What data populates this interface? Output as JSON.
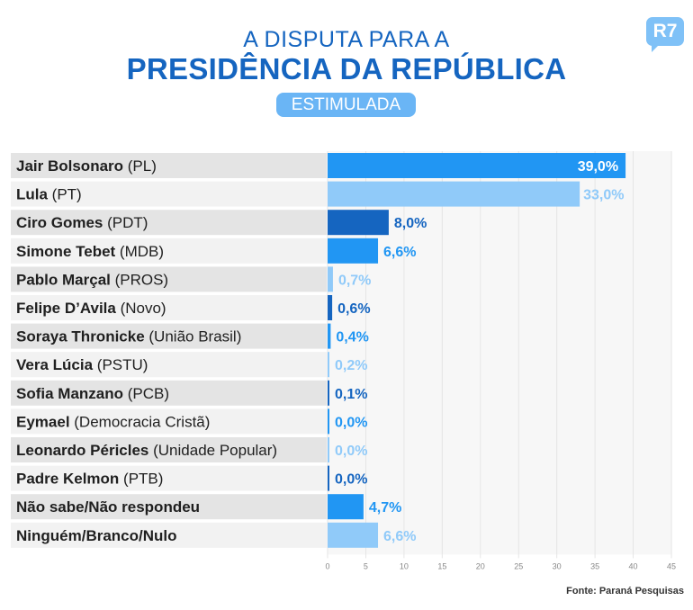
{
  "header": {
    "title_line1": "A DISPUTA PARA A",
    "title_line2": "PRESIDÊNCIA DA REPÚBLICA",
    "subtitle": "ESTIMULADA",
    "logo": "R7"
  },
  "source": "Fonte: Paraná Pesquisas",
  "chart_data": {
    "type": "bar",
    "orientation": "horizontal",
    "categories": [
      {
        "name": "Jair Bolsonaro",
        "party": "(PL)"
      },
      {
        "name": "Lula",
        "party": "(PT)"
      },
      {
        "name": "Ciro Gomes",
        "party": "(PDT)"
      },
      {
        "name": "Simone Tebet",
        "party": "(MDB)"
      },
      {
        "name": "Pablo Marçal",
        "party": "(PROS)"
      },
      {
        "name": "Felipe D’Avila",
        "party": "(Novo)"
      },
      {
        "name": "Soraya Thronicke",
        "party": "(União Brasil)"
      },
      {
        "name": "Vera Lúcia",
        "party": "(PSTU)"
      },
      {
        "name": "Sofia Manzano",
        "party": "(PCB)"
      },
      {
        "name": "Eymael",
        "party": "(Democracia Cristã)"
      },
      {
        "name": "Leonardo Péricles",
        "party": "(Unidade Popular)"
      },
      {
        "name": "Padre Kelmon",
        "party": "(PTB)"
      },
      {
        "name": "Não sabe/Não respondeu",
        "party": ""
      },
      {
        "name": "Ninguém/Branco/Nulo",
        "party": ""
      }
    ],
    "values": [
      39.0,
      33.0,
      8.0,
      6.6,
      0.7,
      0.6,
      0.4,
      0.2,
      0.1,
      0.0,
      0.0,
      0.0,
      4.7,
      6.6
    ],
    "value_labels": [
      "39,0%",
      "33,0%",
      "8,0%",
      "6,6%",
      "0,7%",
      "0,6%",
      "0,4%",
      "0,2%",
      "0,1%",
      "0,0%",
      "0,0%",
      "0,0%",
      "4,7%",
      "6,6%"
    ],
    "colors": [
      "#2196f3",
      "#90caf9",
      "#1565c0",
      "#2196f3",
      "#90caf9",
      "#1565c0",
      "#2196f3",
      "#90caf9",
      "#1565c0",
      "#2196f3",
      "#90caf9",
      "#1565c0",
      "#2196f3",
      "#90caf9"
    ],
    "xlim": [
      0,
      45
    ],
    "xticks": [
      0,
      5,
      10,
      15,
      20,
      25,
      30,
      35,
      40,
      45
    ],
    "grid": true
  }
}
